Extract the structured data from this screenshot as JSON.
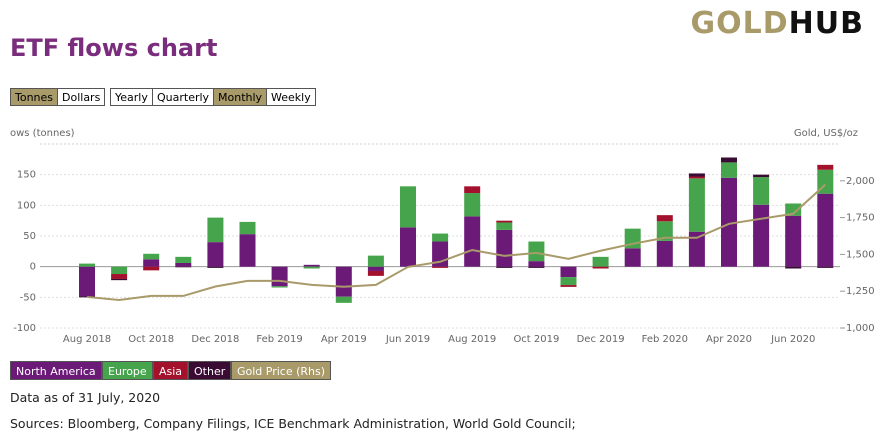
{
  "header": {
    "logo_gold": "GOLD",
    "logo_hub": "HUB",
    "title": "ETF flows chart"
  },
  "controls": {
    "units": [
      "Tonnes",
      "Dollars"
    ],
    "periods": [
      "Yearly",
      "Quarterly",
      "Monthly",
      "Weekly"
    ],
    "selected_unit": "Tonnes",
    "selected_period": "Monthly"
  },
  "chart_data": {
    "type": "bar",
    "stacked": true,
    "grid": true,
    "y_label": "ows (tonnes)",
    "y2_label": "Gold, US$/oz",
    "categories": [
      "Aug 2018",
      null,
      "Oct 2018",
      null,
      "Dec 2018",
      null,
      "Feb 2019",
      null,
      "Apr 2019",
      null,
      "Jun 2019",
      null,
      "Aug 2019",
      null,
      "Oct 2019",
      null,
      "Dec 2019",
      null,
      "Feb 2020",
      null,
      "Apr 2020",
      null,
      "Jun 2020",
      null
    ],
    "ylim": [
      -100,
      200
    ],
    "yticks": [
      -100,
      -50,
      0,
      50,
      100,
      150
    ],
    "y2lim": [
      1000,
      2250
    ],
    "y2ticks": [
      {
        "value": 1000,
        "label": "1,000"
      },
      {
        "value": 1250,
        "label": "1,250"
      },
      {
        "value": 1500,
        "label": "1,500"
      },
      {
        "value": 1750,
        "label": "1,750"
      },
      {
        "value": 2000,
        "label": "2,000"
      }
    ],
    "series": [
      {
        "name": "North America",
        "type": "bar",
        "color": "#6b1a78",
        "values": [
          -48,
          0,
          12,
          6,
          40,
          53,
          -32,
          3,
          -49,
          -7,
          64,
          41,
          82,
          60,
          9,
          -17,
          0,
          30,
          42,
          57,
          145,
          101,
          83,
          119
        ]
      },
      {
        "name": "Europe",
        "type": "bar",
        "color": "#46a54c",
        "values": [
          5,
          -12,
          9,
          10,
          40,
          20,
          -2,
          -3,
          -10,
          18,
          67,
          13,
          38,
          12,
          32,
          -13,
          16,
          32,
          32,
          87,
          25,
          45,
          20,
          39
        ]
      },
      {
        "name": "Asia",
        "type": "bar",
        "color": "#a3112c",
        "values": [
          0,
          -8,
          -6,
          0,
          0,
          0,
          0,
          0,
          0,
          -8,
          0,
          -2,
          11,
          3,
          0,
          -3,
          -3,
          0,
          10,
          3,
          0,
          0,
          0,
          8
        ]
      },
      {
        "name": "Other",
        "type": "bar",
        "color": "#3a0b33",
        "values": [
          -2,
          -2,
          0,
          -1,
          -2,
          0,
          0,
          0,
          0,
          0,
          0,
          0,
          0,
          -2,
          -2,
          0,
          0,
          0,
          0,
          5,
          8,
          4,
          -3,
          -2
        ]
      },
      {
        "name": "Gold Price (Rhs)",
        "type": "line",
        "axis": "y2",
        "color": "#a99a6a",
        "values": [
          1211,
          1190,
          1218,
          1218,
          1282,
          1320,
          1320,
          1293,
          1280,
          1293,
          1415,
          1450,
          1530,
          1490,
          1510,
          1470,
          1525,
          1572,
          1613,
          1613,
          1708,
          1742,
          1776,
          1974
        ]
      }
    ]
  },
  "footer": {
    "as_of": "Data as of 31 July, 2020",
    "sources": "Sources: Bloomberg, Company Filings, ICE Benchmark Administration, World Gold Council;"
  }
}
